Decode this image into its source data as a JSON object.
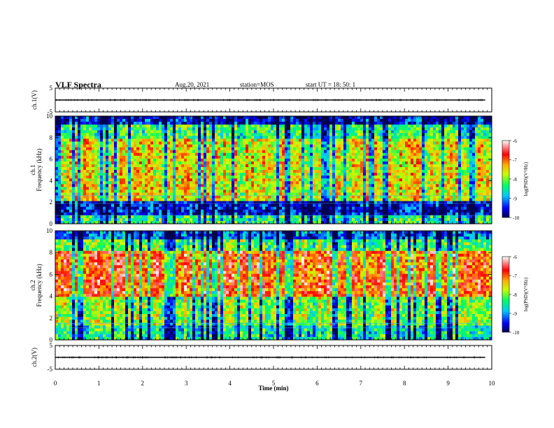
{
  "header": {
    "title": "VLF Spectra",
    "date": "Aug.20, 2021",
    "station": "station=MOS",
    "start": "start UT =   18: 50: 1"
  },
  "chart_data": [
    {
      "type": "line",
      "panel": "ch1-waveform",
      "ylabel": "ch.1(V)",
      "ylim": [
        -5,
        5
      ],
      "yticks": [
        "5",
        "-5"
      ],
      "xlim": [
        0,
        10
      ],
      "series": [
        {
          "x": [
            0,
            9.85
          ],
          "values": [
            0,
            0
          ]
        }
      ]
    },
    {
      "type": "heatmap",
      "panel": "ch1-spectrogram",
      "ylabel": [
        "ch.1",
        "Frequency (kHz)"
      ],
      "ylim": [
        0,
        10
      ],
      "yticks": [
        "0",
        "2",
        "4",
        "6",
        "8",
        "10"
      ],
      "xlim": [
        0,
        10
      ],
      "colorbar": {
        "label": "log(PSD)(V²/Hz)",
        "range": [
          -10,
          -6
        ],
        "ticks": [
          "-6",
          "-7",
          "-8",
          "-9",
          "-10"
        ]
      }
    },
    {
      "type": "heatmap",
      "panel": "ch2-spectrogram",
      "ylabel": [
        "ch.2",
        "Frequency (kHz)"
      ],
      "ylim": [
        0,
        10
      ],
      "yticks": [
        "0",
        "2",
        "4",
        "6",
        "8",
        "10"
      ],
      "xlim": [
        0,
        10
      ],
      "colorbar": {
        "label": "log(PSD)(V²/Hz)",
        "range": [
          -10,
          -6
        ],
        "ticks": [
          "-6",
          "-7",
          "-8",
          "-9",
          "-10"
        ]
      }
    },
    {
      "type": "line",
      "panel": "ch2-waveform",
      "ylabel": "ch.2(V)",
      "ylim": [
        -5,
        5
      ],
      "yticks": [
        "5",
        "-5"
      ],
      "xlim": [
        0,
        10
      ],
      "xlabel": "Time (min)",
      "xticks": [
        "0",
        "1",
        "2",
        "3",
        "4",
        "5",
        "6",
        "7",
        "8",
        "9",
        "10"
      ],
      "series": [
        {
          "x": [
            0,
            9.85
          ],
          "values": [
            0,
            0
          ]
        }
      ]
    }
  ]
}
